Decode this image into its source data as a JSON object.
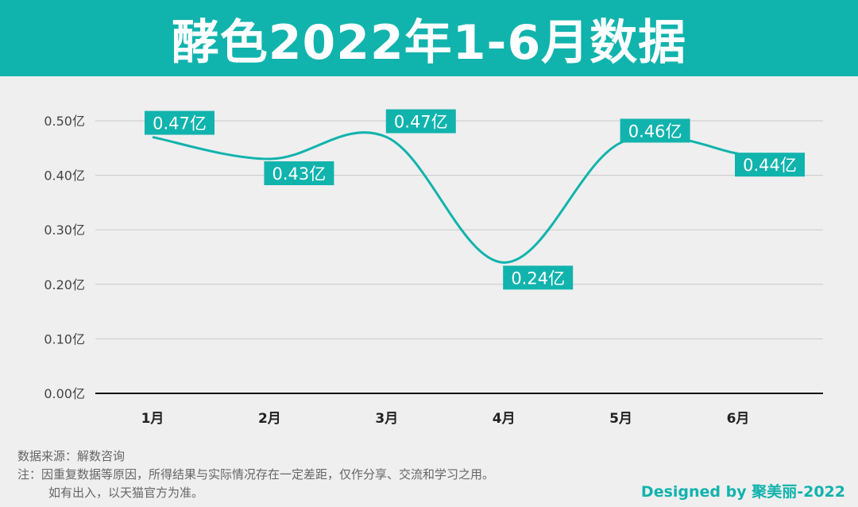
{
  "header": {
    "title": "酵色2022年1-6月数据"
  },
  "chart_data": {
    "type": "line",
    "title": "酵色2022年1-6月数据",
    "categories": [
      "1月",
      "2月",
      "3月",
      "4月",
      "5月",
      "6月"
    ],
    "series": [
      {
        "values": [
          0.47,
          0.43,
          0.47,
          0.24,
          0.46,
          0.44
        ],
        "labels": [
          "0.47亿",
          "0.43亿",
          "0.47亿",
          "0.24亿",
          "0.46亿",
          "0.44亿"
        ]
      }
    ],
    "yticks": [
      "0.00亿",
      "0.10亿",
      "0.20亿",
      "0.30亿",
      "0.40亿",
      "0.50亿"
    ],
    "ylim": [
      0,
      0.5
    ],
    "grid": true,
    "line_color": "#11b3ad",
    "label_bg_color": "#11b3ad"
  },
  "footer": {
    "source": "数据来源：解数咨询",
    "note_line1": "注：因重复数据等原因，所得结果与实际情况存在一定差距，仅作分享、交流和学习之用。",
    "note_line2": "如有出入，以天猫官方为准。",
    "credit": "Designed by 聚美丽-2022"
  }
}
